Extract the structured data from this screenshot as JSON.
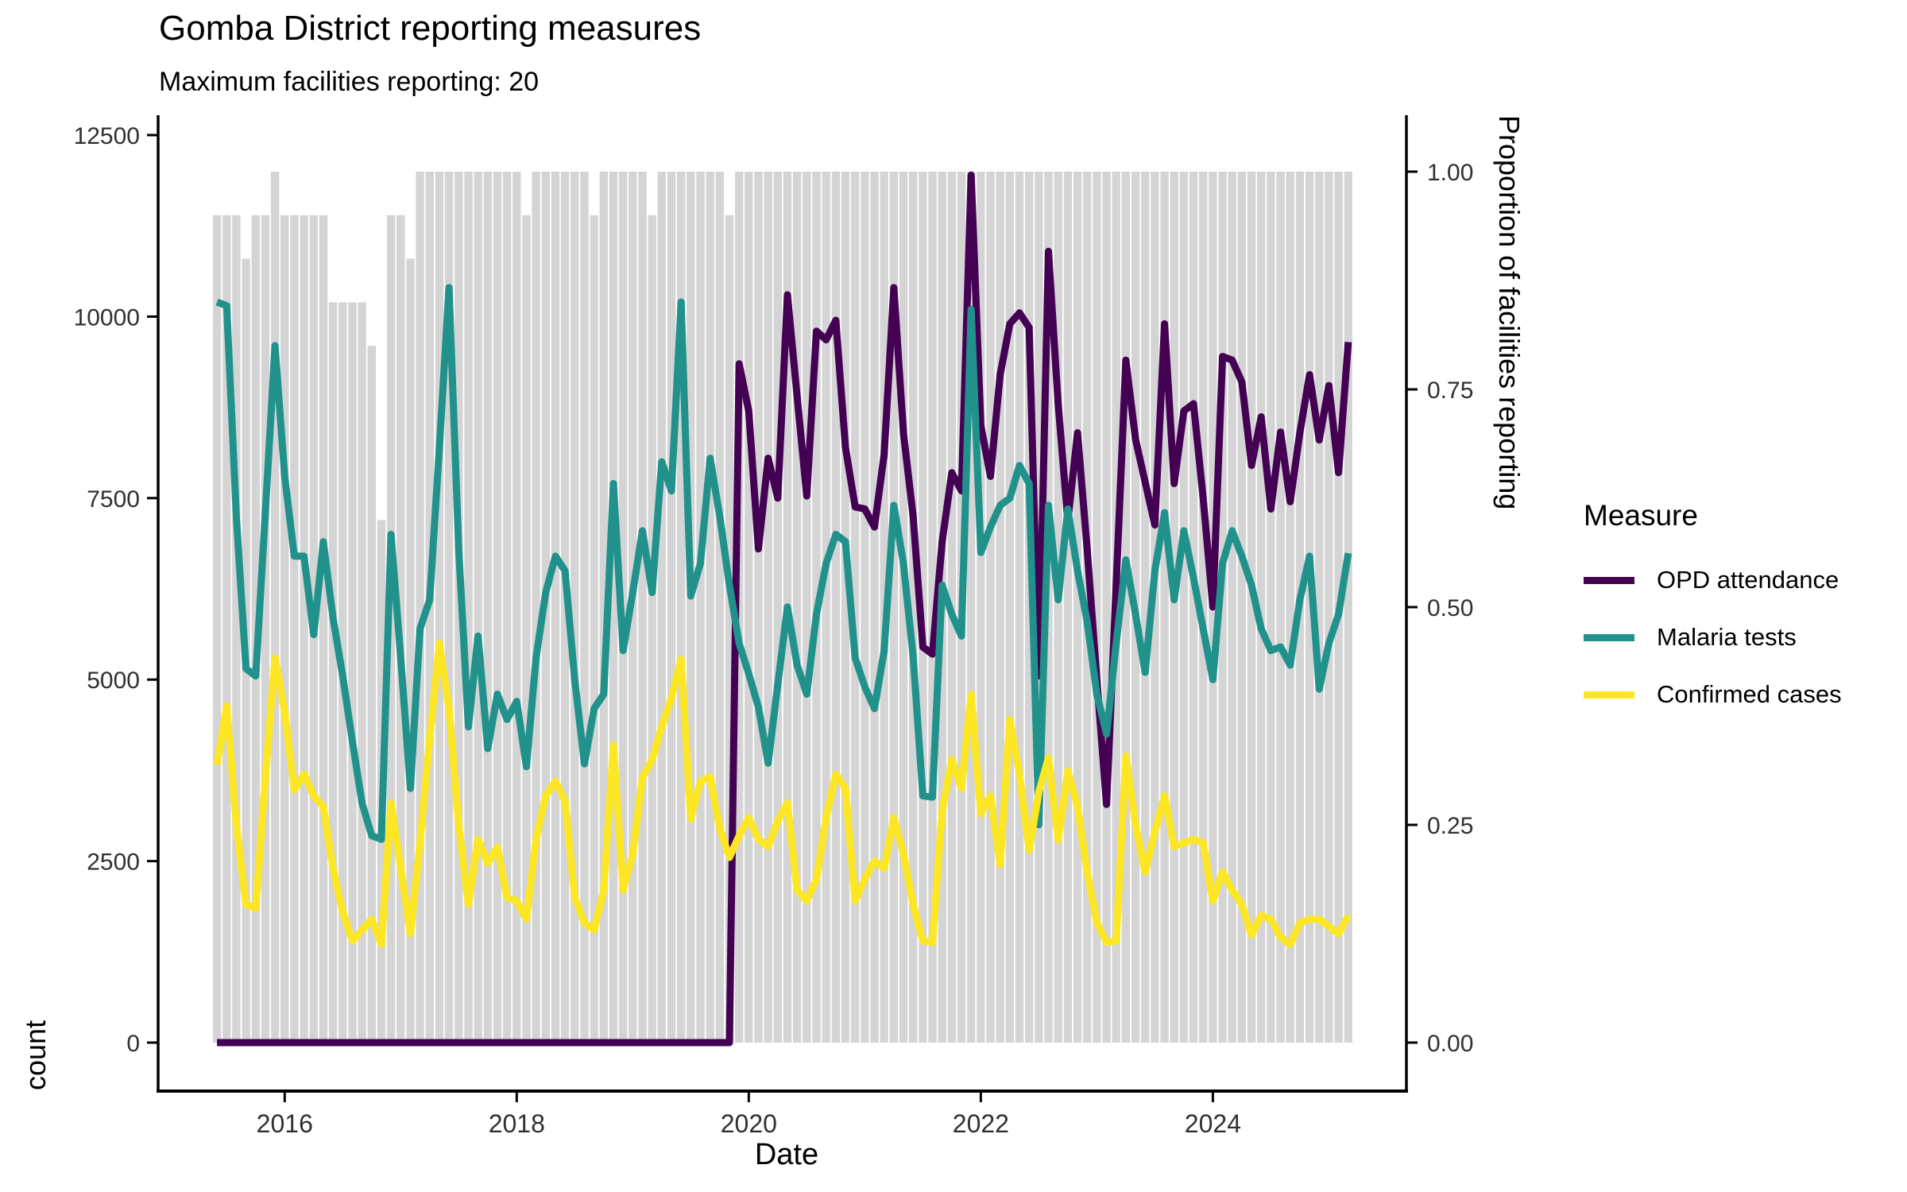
{
  "title": {
    "text": "Gomba District reporting measures"
  },
  "subtitle": {
    "text": "Maximum facilities reporting: 20"
  },
  "colors": {
    "opd": "#440154",
    "malaria": "#21918c",
    "confirmed": "#fde725",
    "bars": "#d4d4d4",
    "axis_line": "#000000",
    "tick_text": "#303030"
  },
  "axes": {
    "left": {
      "label": "count",
      "ticks": [
        0,
        2500,
        5000,
        7500,
        10000,
        12500
      ]
    },
    "right": {
      "label": "Proportion of facilities reporting",
      "ticks": [
        {
          "label": "0.00",
          "value": 0
        },
        {
          "label": "0.25",
          "value": 0.25
        },
        {
          "label": "0.50",
          "value": 0.5
        },
        {
          "label": "0.75",
          "value": 0.75
        },
        {
          "label": "1.00",
          "value": 1
        }
      ]
    },
    "bottom": {
      "label": "Date",
      "ticks": [
        {
          "label": "2016",
          "month_index": 7
        },
        {
          "label": "2018",
          "month_index": 31
        },
        {
          "label": "2020",
          "month_index": 55
        },
        {
          "label": "2022",
          "month_index": 79
        },
        {
          "label": "2024",
          "month_index": 103
        }
      ]
    }
  },
  "legend": {
    "title": "Measure",
    "items": [
      {
        "label": "OPD attendance",
        "color": "#440154"
      },
      {
        "label": "Malaria tests",
        "color": "#21918c"
      },
      {
        "label": "Confirmed cases",
        "color": "#fde725"
      }
    ]
  },
  "chart_data": {
    "type": "line+bar",
    "title": "Gomba District reporting measures",
    "subtitle": "Maximum facilities reporting: 20",
    "xlabel": "Date",
    "ylabel_left": "count",
    "ylabel_right": "Proportion of facilities reporting",
    "ylim_left": [
      0,
      12500
    ],
    "ylim_right": [
      0,
      1
    ],
    "max_facilities": 20,
    "x_tick_years": [
      "2016",
      "2018",
      "2020",
      "2022",
      "2024"
    ],
    "legend_position": "right",
    "months": [
      "2015-06",
      "2015-07",
      "2015-08",
      "2015-09",
      "2015-10",
      "2015-11",
      "2015-12",
      "2016-01",
      "2016-02",
      "2016-03",
      "2016-04",
      "2016-05",
      "2016-06",
      "2016-07",
      "2016-08",
      "2016-09",
      "2016-10",
      "2016-11",
      "2016-12",
      "2017-01",
      "2017-02",
      "2017-03",
      "2017-04",
      "2017-05",
      "2017-06",
      "2017-07",
      "2017-08",
      "2017-09",
      "2017-10",
      "2017-11",
      "2017-12",
      "2018-01",
      "2018-02",
      "2018-03",
      "2018-04",
      "2018-05",
      "2018-06",
      "2018-07",
      "2018-08",
      "2018-09",
      "2018-10",
      "2018-11",
      "2018-12",
      "2019-01",
      "2019-02",
      "2019-03",
      "2019-04",
      "2019-05",
      "2019-06",
      "2019-07",
      "2019-08",
      "2019-09",
      "2019-10",
      "2019-11",
      "2019-12",
      "2020-01",
      "2020-02",
      "2020-03",
      "2020-04",
      "2020-05",
      "2020-06",
      "2020-07",
      "2020-08",
      "2020-09",
      "2020-10",
      "2020-11",
      "2020-12",
      "2021-01",
      "2021-02",
      "2021-03",
      "2021-04",
      "2021-05",
      "2021-06",
      "2021-07",
      "2021-08",
      "2021-09",
      "2021-10",
      "2021-11",
      "2021-12",
      "2022-01",
      "2022-02",
      "2022-03",
      "2022-04",
      "2022-05",
      "2022-06",
      "2022-07",
      "2022-08",
      "2022-09",
      "2022-10",
      "2022-11",
      "2022-12",
      "2023-01",
      "2023-02",
      "2023-03",
      "2023-04",
      "2023-05",
      "2023-06",
      "2023-07",
      "2023-08",
      "2023-09",
      "2023-10",
      "2023-11",
      "2023-12",
      "2024-01",
      "2024-02",
      "2024-03",
      "2024-04",
      "2024-05",
      "2024-06",
      "2024-07",
      "2024-08",
      "2024-09",
      "2024-10",
      "2024-11",
      "2024-12",
      "2025-01",
      "2025-02",
      "2025-03"
    ],
    "bars": {
      "name": "Proportion of facilities reporting",
      "values": [
        0.95,
        0.95,
        0.95,
        0.9,
        0.95,
        0.95,
        1.0,
        0.95,
        0.95,
        0.95,
        0.95,
        0.95,
        0.85,
        0.85,
        0.85,
        0.85,
        0.8,
        0.6,
        0.95,
        0.95,
        0.9,
        1.0,
        1.0,
        1.0,
        1.0,
        1.0,
        1.0,
        1.0,
        1.0,
        1.0,
        1.0,
        1.0,
        0.95,
        1.0,
        1.0,
        1.0,
        1.0,
        1.0,
        1.0,
        0.95,
        1.0,
        1.0,
        1.0,
        1.0,
        1.0,
        0.95,
        1.0,
        1.0,
        1.0,
        1.0,
        1.0,
        1.0,
        1.0,
        0.95,
        1.0,
        1.0,
        1.0,
        1.0,
        1.0,
        1.0,
        1.0,
        1.0,
        1.0,
        1.0,
        1.0,
        1.0,
        1.0,
        1.0,
        1.0,
        1.0,
        1.0,
        1.0,
        1.0,
        1.0,
        1.0,
        1.0,
        1.0,
        1.0,
        1.0,
        1.0,
        1.0,
        1.0,
        1.0,
        1.0,
        1.0,
        1.0,
        1.0,
        1.0,
        1.0,
        1.0,
        1.0,
        1.0,
        1.0,
        1.0,
        1.0,
        1.0,
        1.0,
        1.0,
        1.0,
        1.0,
        1.0,
        1.0,
        1.0,
        1.0,
        1.0,
        1.0,
        1.0,
        1.0,
        1.0,
        1.0,
        1.0,
        1.0,
        1.0,
        1.0,
        1.0,
        1.0,
        1.0,
        1.0
      ]
    },
    "series": [
      {
        "name": "OPD attendance",
        "color": "#440154",
        "values": [
          0,
          0,
          0,
          0,
          0,
          0,
          0,
          0,
          0,
          0,
          0,
          0,
          0,
          0,
          0,
          0,
          0,
          0,
          0,
          0,
          0,
          0,
          0,
          0,
          0,
          0,
          0,
          0,
          0,
          0,
          0,
          0,
          0,
          0,
          0,
          0,
          0,
          0,
          0,
          0,
          0,
          0,
          0,
          0,
          0,
          0,
          0,
          0,
          0,
          0,
          0,
          0,
          0,
          0,
          9350,
          8700,
          6800,
          8050,
          7500,
          10300,
          8900,
          7530,
          9800,
          9680,
          9950,
          8200,
          7380,
          7350,
          7100,
          8100,
          10400,
          8400,
          7250,
          5450,
          5350,
          6900,
          7850,
          7600,
          11950,
          8500,
          7800,
          9200,
          9900,
          10050,
          9850,
          5050,
          10900,
          8800,
          7180,
          8400,
          6800,
          5000,
          3280,
          6300,
          9400,
          8310,
          7720,
          7130,
          9900,
          7700,
          8700,
          8800,
          7500,
          6000,
          9450,
          9400,
          9100,
          7950,
          8620,
          7350,
          8410,
          7450,
          8400,
          9200,
          8300,
          9050,
          7850,
          9650
        ]
      },
      {
        "name": "Malaria tests",
        "color": "#21918c",
        "values": [
          10200,
          10150,
          7250,
          5150,
          5050,
          7300,
          9600,
          7800,
          6700,
          6700,
          5620,
          6900,
          5850,
          5050,
          4150,
          3300,
          2850,
          2800,
          7000,
          5300,
          3500,
          5700,
          6100,
          8200,
          10400,
          6800,
          4350,
          5600,
          4050,
          4800,
          4450,
          4700,
          3800,
          5300,
          6200,
          6700,
          6500,
          5000,
          3840,
          4600,
          4800,
          7700,
          5400,
          6200,
          7050,
          6200,
          8000,
          7600,
          10200,
          6150,
          6600,
          8050,
          7250,
          6300,
          5500,
          5080,
          4620,
          3850,
          4930,
          6000,
          5200,
          4800,
          5900,
          6600,
          7000,
          6900,
          5300,
          4900,
          4600,
          5400,
          7400,
          6600,
          5320,
          3400,
          3380,
          6300,
          5900,
          5600,
          10100,
          6750,
          7100,
          7400,
          7500,
          7950,
          7700,
          3000,
          7400,
          6100,
          7350,
          6500,
          5800,
          4800,
          4250,
          5500,
          6650,
          5900,
          5100,
          6500,
          7300,
          6100,
          7050,
          6400,
          5700,
          5000,
          6600,
          7050,
          6700,
          6300,
          5700,
          5400,
          5450,
          5200,
          6100,
          6700,
          4870,
          5500,
          5900,
          6740
        ]
      },
      {
        "name": "Confirmed cases",
        "color": "#fde725",
        "values": [
          3830,
          4640,
          3000,
          1900,
          1850,
          3650,
          5300,
          4550,
          3480,
          3700,
          3400,
          3250,
          2400,
          1800,
          1400,
          1550,
          1700,
          1350,
          3300,
          2400,
          1500,
          2750,
          4200,
          5500,
          4600,
          3000,
          1900,
          2800,
          2470,
          2690,
          2000,
          1950,
          1700,
          2800,
          3400,
          3600,
          3330,
          2000,
          1650,
          1550,
          2100,
          4100,
          2100,
          2600,
          3650,
          3900,
          4350,
          4750,
          5280,
          3080,
          3600,
          3660,
          2950,
          2550,
          2850,
          3100,
          2800,
          2700,
          3050,
          3300,
          2100,
          1950,
          2250,
          3100,
          3700,
          3500,
          1950,
          2250,
          2500,
          2400,
          3100,
          2600,
          1900,
          1400,
          1380,
          3200,
          3900,
          3500,
          4800,
          3150,
          3400,
          2450,
          4450,
          3700,
          2650,
          3450,
          3925,
          2790,
          3740,
          3250,
          2350,
          1650,
          1380,
          1400,
          3950,
          3000,
          2350,
          2900,
          3400,
          2700,
          2750,
          2800,
          2750,
          1950,
          2350,
          2100,
          1900,
          1480,
          1750,
          1700,
          1450,
          1350,
          1650,
          1700,
          1700,
          1600,
          1500,
          1750
        ]
      }
    ]
  }
}
